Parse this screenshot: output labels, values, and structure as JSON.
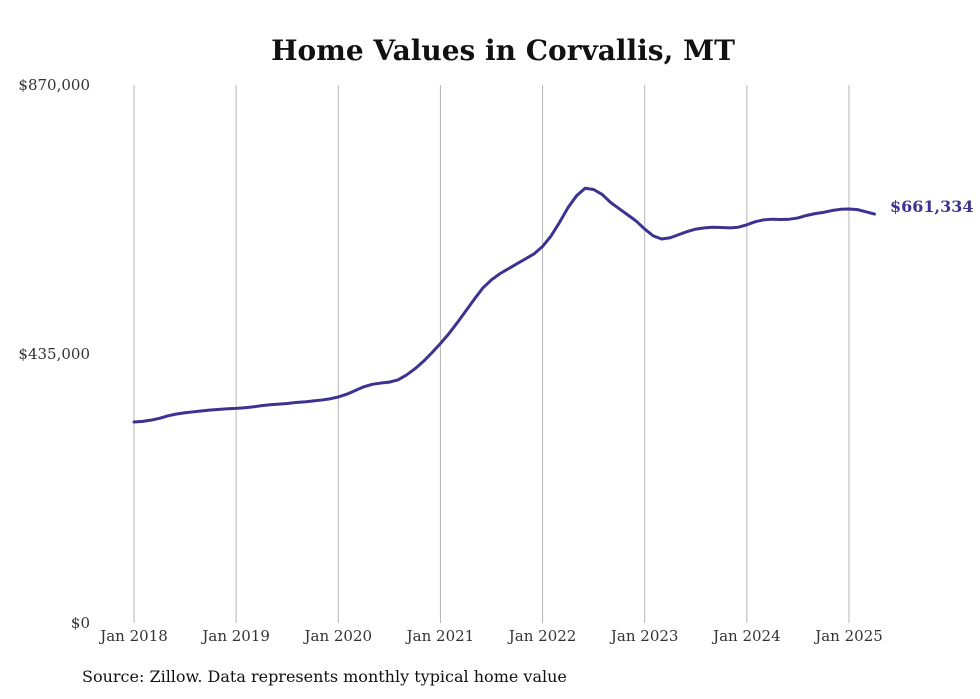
{
  "chart_data": {
    "type": "line",
    "title": "Home Values in Corvallis, MT",
    "xlabel": "",
    "ylabel": "",
    "ylim": [
      0,
      870000
    ],
    "y_ticks": [
      0,
      435000,
      870000
    ],
    "y_tick_labels": [
      "$0",
      "$435,000",
      "$870,000"
    ],
    "x_ticks": [
      "2018-01",
      "2019-01",
      "2020-01",
      "2021-01",
      "2022-01",
      "2023-01",
      "2024-01",
      "2025-01"
    ],
    "x_tick_labels": [
      "Jan 2018",
      "Jan 2019",
      "Jan 2020",
      "Jan 2021",
      "Jan 2022",
      "Jan 2023",
      "Jan 2024",
      "Jan 2025"
    ],
    "grid": "vertical lines at yearly ticks",
    "end_label": "$661,334",
    "series": [
      {
        "color": "#3b3391",
        "x": [
          "2018-01",
          "2018-02",
          "2018-03",
          "2018-04",
          "2018-05",
          "2018-06",
          "2018-07",
          "2018-08",
          "2018-09",
          "2018-10",
          "2018-11",
          "2018-12",
          "2019-01",
          "2019-02",
          "2019-03",
          "2019-04",
          "2019-05",
          "2019-06",
          "2019-07",
          "2019-08",
          "2019-09",
          "2019-10",
          "2019-11",
          "2019-12",
          "2020-01",
          "2020-02",
          "2020-03",
          "2020-04",
          "2020-05",
          "2020-06",
          "2020-07",
          "2020-08",
          "2020-09",
          "2020-10",
          "2020-11",
          "2020-12",
          "2021-01",
          "2021-02",
          "2021-03",
          "2021-04",
          "2021-05",
          "2021-06",
          "2021-07",
          "2021-08",
          "2021-09",
          "2021-10",
          "2021-11",
          "2021-12",
          "2022-01",
          "2022-02",
          "2022-03",
          "2022-04",
          "2022-05",
          "2022-06",
          "2022-07",
          "2022-08",
          "2022-09",
          "2022-10",
          "2022-11",
          "2022-12",
          "2023-01",
          "2023-02",
          "2023-03",
          "2023-04",
          "2023-05",
          "2023-06",
          "2023-07",
          "2023-08",
          "2023-09",
          "2023-10",
          "2023-11",
          "2023-12",
          "2024-01",
          "2024-02",
          "2024-03",
          "2024-04",
          "2024-05",
          "2024-06",
          "2024-07",
          "2024-08",
          "2024-09",
          "2024-10",
          "2024-11",
          "2024-12",
          "2025-01",
          "2025-02",
          "2025-03",
          "2025-04"
        ],
        "y": [
          325000,
          326000,
          328000,
          331000,
          335000,
          338000,
          340000,
          341500,
          343000,
          344500,
          345500,
          346500,
          347000,
          348000,
          349500,
          351500,
          353000,
          354000,
          355000,
          356500,
          357500,
          359000,
          360500,
          362500,
          365500,
          370000,
          376000,
          382000,
          386000,
          388000,
          389500,
          393000,
          401000,
          411000,
          423000,
          437000,
          452000,
          468000,
          486000,
          505000,
          524000,
          542000,
          555000,
          565000,
          573000,
          581000,
          589000,
          597000,
          609000,
          626000,
          648000,
          672000,
          691000,
          703000,
          701000,
          693000,
          680000,
          670000,
          660000,
          650000,
          637000,
          626000,
          621000,
          623000,
          628000,
          633000,
          637000,
          639000,
          640000,
          639500,
          639000,
          640000,
          644000,
          649000,
          652000,
          653000,
          652500,
          653000,
          655000,
          659000,
          662000,
          664000,
          667000,
          669000,
          669500,
          668500,
          665000,
          661334
        ]
      }
    ]
  },
  "source_text": "Source: Zillow. Data represents monthly typical home value"
}
